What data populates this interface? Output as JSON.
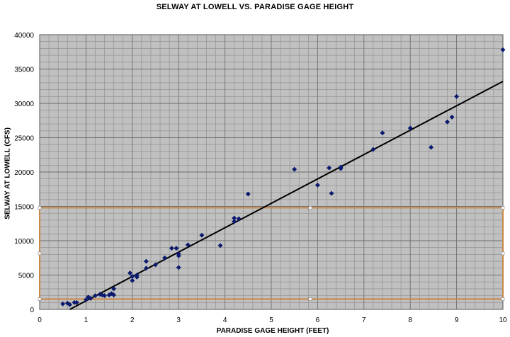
{
  "chart_data": {
    "type": "scatter",
    "title": "SELWAY AT LOWELL VS. PARADISE GAGE HEIGHT",
    "xlabel": "PARADISE GAGE HEIGHT (FEET)",
    "ylabel": "SELWAY AT LOWELL (CFS)",
    "xlim": [
      0,
      10
    ],
    "ylim": [
      0,
      40000
    ],
    "x_ticks": [
      "0",
      "1",
      "2",
      "3",
      "4",
      "5",
      "6",
      "7",
      "8",
      "9",
      "10"
    ],
    "y_ticks": [
      "0",
      "5000",
      "10000",
      "15000",
      "20000",
      "25000",
      "30000",
      "35000",
      "40000"
    ],
    "grid": true,
    "background_color": "#c0c0c0",
    "grid_color": "#8c8c8c",
    "marker_color": "#0b1a6e",
    "trendline_color": "#000000",
    "highlight_color": "#c8884a",
    "series": [
      {
        "x": [
          0.5,
          0.6,
          0.65,
          0.75,
          0.8,
          1.0,
          1.05,
          1.1,
          1.2,
          1.3,
          1.35,
          1.4,
          1.5,
          1.55,
          1.6,
          1.6,
          1.95,
          2.0,
          2.0,
          2.1,
          2.1,
          2.3,
          2.3,
          2.5,
          2.7,
          2.85,
          2.95,
          3.0,
          3.0,
          3.0,
          3.2,
          3.5,
          3.9,
          4.2,
          4.2,
          4.3,
          4.5,
          5.5,
          6.0,
          6.25,
          6.3,
          6.5,
          6.5,
          7.2,
          7.4,
          8.0,
          8.45,
          8.8,
          8.9,
          9.0,
          10.0
        ],
        "y": [
          800,
          900,
          700,
          1000,
          1000,
          1400,
          1800,
          1600,
          2000,
          2200,
          2100,
          2000,
          2100,
          2300,
          2100,
          3000,
          5300,
          4200,
          4800,
          4700,
          5000,
          6000,
          7000,
          6500,
          7500,
          8900,
          8900,
          8100,
          7800,
          6100,
          9400,
          10800,
          9300,
          13300,
          12800,
          13200,
          16800,
          20400,
          18100,
          20600,
          16900,
          20500,
          20700,
          23300,
          25700,
          26400,
          23600,
          27300,
          28000,
          31000,
          37800
        ]
      }
    ],
    "trendline": {
      "x": [
        0.65,
        10.0
      ],
      "y": [
        0,
        33200
      ]
    },
    "highlight_band": {
      "y": [
        1500,
        14800
      ]
    }
  }
}
